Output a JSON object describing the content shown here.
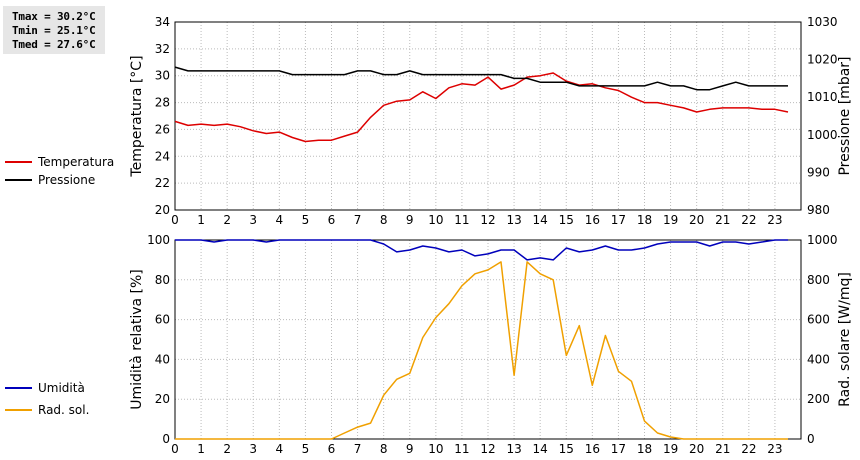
{
  "stats": [
    {
      "label": "Tmax",
      "value": "30.2°C"
    },
    {
      "label": "Tmin",
      "value": "25.1°C"
    },
    {
      "label": "Tmed",
      "value": "27.6°C"
    }
  ],
  "colors": {
    "temperature": "#dd0000",
    "pressure": "#000000",
    "humidity": "#0000bb",
    "solar": "#f0a000",
    "grid": "#bbbbbb"
  },
  "chart_data": [
    {
      "type": "line",
      "x_ticks": [
        0,
        1,
        2,
        3,
        4,
        5,
        6,
        7,
        8,
        9,
        10,
        11,
        12,
        13,
        14,
        15,
        16,
        17,
        18,
        19,
        20,
        21,
        22,
        23
      ],
      "y_left": {
        "label": "Temperatura [°C]",
        "min": 20,
        "max": 34,
        "ticks": [
          20,
          22,
          24,
          26,
          28,
          30,
          32,
          34
        ]
      },
      "y_right": {
        "label": "Pressione [mbar]",
        "min": 980,
        "max": 1030,
        "ticks": [
          980,
          990,
          1000,
          1010,
          1020,
          1030
        ]
      },
      "grid": true,
      "series": [
        {
          "name": "Temperatura",
          "axis": "left",
          "color": "#dd0000",
          "x": [
            0,
            0.5,
            1,
            1.5,
            2,
            2.5,
            3,
            3.5,
            4,
            4.5,
            5,
            5.5,
            6,
            6.5,
            7,
            7.5,
            8,
            8.5,
            9,
            9.5,
            10,
            10.5,
            11,
            11.5,
            12,
            12.5,
            13,
            13.5,
            14,
            14.5,
            15,
            15.5,
            16,
            16.5,
            17,
            17.5,
            18,
            18.5,
            19,
            19.5,
            20,
            20.5,
            21,
            21.5,
            22,
            22.5,
            23,
            23.5
          ],
          "y": [
            26.6,
            26.3,
            26.4,
            26.3,
            26.4,
            26.2,
            25.9,
            25.7,
            25.8,
            25.4,
            25.1,
            25.2,
            25.2,
            25.5,
            25.8,
            26.9,
            27.8,
            28.1,
            28.2,
            28.8,
            28.3,
            29.1,
            29.4,
            29.3,
            29.9,
            29.0,
            29.3,
            29.9,
            30.0,
            30.2,
            29.6,
            29.3,
            29.4,
            29.1,
            28.9,
            28.4,
            28.0,
            28.0,
            27.8,
            27.6,
            27.3,
            27.5,
            27.6,
            27.6,
            27.6,
            27.5,
            27.5,
            27.3
          ]
        },
        {
          "name": "Pressione",
          "axis": "right",
          "color": "#000000",
          "x": [
            0,
            0.5,
            1,
            1.5,
            2,
            2.5,
            3,
            3.5,
            4,
            4.5,
            5,
            5.5,
            6,
            6.5,
            7,
            7.5,
            8,
            8.5,
            9,
            9.5,
            10,
            10.5,
            11,
            11.5,
            12,
            12.5,
            13,
            13.5,
            14,
            14.5,
            15,
            15.5,
            16,
            16.5,
            17,
            17.5,
            18,
            18.5,
            19,
            19.5,
            20,
            20.5,
            21,
            21.5,
            22,
            22.5,
            23,
            23.5
          ],
          "y": [
            1018,
            1017,
            1017,
            1017,
            1017,
            1017,
            1017,
            1017,
            1017,
            1016,
            1016,
            1016,
            1016,
            1016,
            1017,
            1017,
            1016,
            1016,
            1017,
            1016,
            1016,
            1016,
            1016,
            1016,
            1016,
            1016,
            1015,
            1015,
            1014,
            1014,
            1014,
            1013,
            1013,
            1013,
            1013,
            1013,
            1013,
            1014,
            1013,
            1013,
            1012,
            1012,
            1013,
            1014,
            1013,
            1013,
            1013,
            1013
          ]
        }
      ]
    },
    {
      "type": "line",
      "x_ticks": [
        0,
        1,
        2,
        3,
        4,
        5,
        6,
        7,
        8,
        9,
        10,
        11,
        12,
        13,
        14,
        15,
        16,
        17,
        18,
        19,
        20,
        21,
        22,
        23
      ],
      "y_left": {
        "label": "Umidità relativa [%]",
        "min": 0,
        "max": 100,
        "ticks": [
          0,
          20,
          40,
          60,
          80,
          100
        ]
      },
      "y_right": {
        "label": "Rad. solare [W/mq]",
        "min": 0,
        "max": 1000,
        "ticks": [
          0,
          200,
          400,
          600,
          800,
          1000
        ]
      },
      "grid": true,
      "series": [
        {
          "name": "Umidità",
          "axis": "left",
          "color": "#0000bb",
          "x": [
            0,
            0.5,
            1,
            1.5,
            2,
            2.5,
            3,
            3.5,
            4,
            4.5,
            5,
            5.5,
            6,
            6.5,
            7,
            7.5,
            8,
            8.5,
            9,
            9.5,
            10,
            10.5,
            11,
            11.5,
            12,
            12.5,
            13,
            13.5,
            14,
            14.5,
            15,
            15.5,
            16,
            16.5,
            17,
            17.5,
            18,
            18.5,
            19,
            19.5,
            20,
            20.5,
            21,
            21.5,
            22,
            22.5,
            23,
            23.5
          ],
          "y": [
            100,
            100,
            100,
            99,
            100,
            100,
            100,
            99,
            100,
            100,
            100,
            100,
            100,
            100,
            100,
            100,
            98,
            94,
            95,
            97,
            96,
            94,
            95,
            92,
            93,
            95,
            95,
            90,
            91,
            90,
            96,
            94,
            95,
            97,
            95,
            95,
            96,
            98,
            99,
            99,
            99,
            97,
            99,
            99,
            98,
            99,
            100,
            100
          ]
        },
        {
          "name": "Rad. sol.",
          "axis": "right",
          "color": "#f0a000",
          "x": [
            0,
            0.5,
            1,
            1.5,
            2,
            2.5,
            3,
            3.5,
            4,
            4.5,
            5,
            5.5,
            6,
            6.5,
            7,
            7.5,
            8,
            8.5,
            9,
            9.5,
            10,
            10.5,
            11,
            11.5,
            12,
            12.5,
            13,
            13.5,
            14,
            14.5,
            15,
            15.5,
            16,
            16.5,
            17,
            17.5,
            18,
            18.5,
            19,
            19.5,
            20,
            20.5,
            21,
            21.5,
            22,
            22.5,
            23,
            23.5
          ],
          "y": [
            0,
            0,
            0,
            0,
            0,
            0,
            0,
            0,
            0,
            0,
            0,
            0,
            0,
            30,
            60,
            80,
            220,
            300,
            330,
            510,
            610,
            680,
            770,
            830,
            850,
            890,
            320,
            890,
            830,
            800,
            420,
            570,
            270,
            520,
            340,
            290,
            90,
            30,
            10,
            0,
            0,
            0,
            0,
            0,
            0,
            0,
            0,
            0
          ]
        }
      ]
    }
  ]
}
